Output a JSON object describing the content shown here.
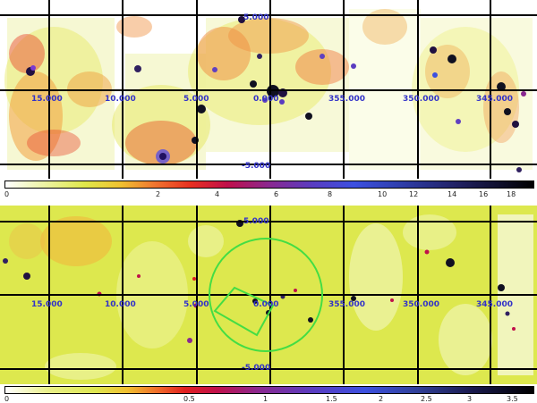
{
  "top_panel": {
    "ra_labels": [
      "15.000",
      "10.000",
      "5.000",
      "0.000",
      "355.000",
      "350.000",
      "345.000"
    ],
    "dec_labels": [
      "5.000",
      "-5.000"
    ],
    "colorbar_ticks": [
      "0",
      "2",
      "4",
      "6",
      "8",
      "10",
      "12",
      "14",
      "16",
      "18"
    ]
  },
  "bottom_panel": {
    "ra_labels": [
      "15.000",
      "10.000",
      "5.000",
      "0.000",
      "355.000",
      "350.000",
      "345.000"
    ],
    "dec_labels": [
      "5.000",
      "-5.000"
    ],
    "colorbar_ticks": [
      "0",
      "0.5",
      "1",
      "1.5",
      "2",
      "2.5",
      "3",
      "3.5"
    ]
  },
  "colors": {
    "grid": "#000000",
    "ra_label": "#3232c8",
    "overlay": "#44dd44",
    "bottom_background": "#dde84e"
  }
}
